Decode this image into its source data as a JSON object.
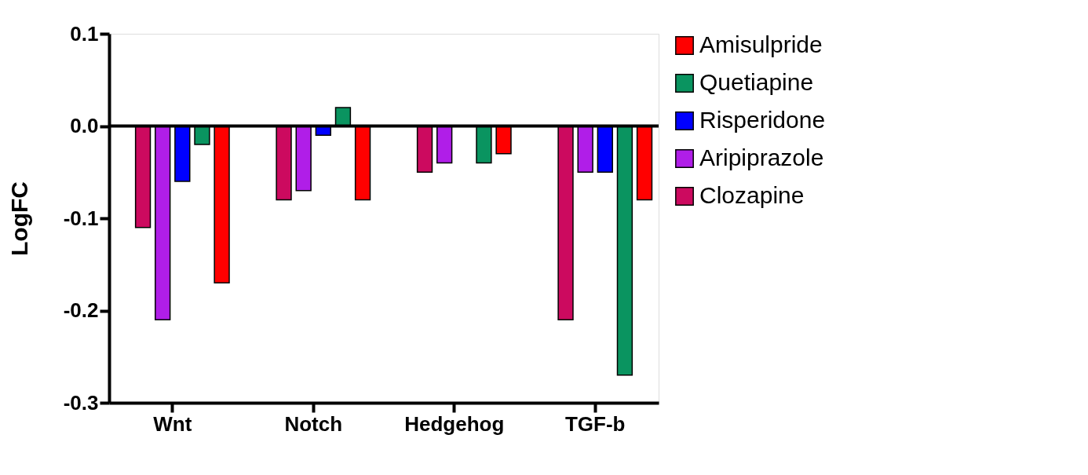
{
  "chart_data": {
    "type": "bar",
    "ylabel": "LogFC",
    "categories": [
      "Wnt",
      "Notch",
      "Hedgehog",
      "TGF-b"
    ],
    "series": [
      {
        "name": "Amisulpride",
        "color": "#ff0000",
        "values": [
          -0.17,
          -0.08,
          -0.03,
          -0.08
        ]
      },
      {
        "name": "Quetiapine",
        "color": "#0a9460",
        "values": [
          -0.02,
          0.02,
          -0.04,
          -0.27
        ]
      },
      {
        "name": "Risperidone",
        "color": "#0000ff",
        "values": [
          -0.06,
          -0.01,
          null,
          -0.05
        ]
      },
      {
        "name": "Aripiprazole",
        "color": "#b01ee8",
        "values": [
          -0.21,
          -0.07,
          -0.04,
          -0.05
        ]
      },
      {
        "name": "Clozapine",
        "color": "#cc0a5f",
        "values": [
          -0.11,
          -0.08,
          -0.05,
          -0.21
        ]
      }
    ],
    "ylim": [
      -0.3,
      0.1
    ],
    "yticks": [
      {
        "value": -0.3,
        "label": "-0.3"
      },
      {
        "value": -0.2,
        "label": "-0.2"
      },
      {
        "value": -0.1,
        "label": "-0.1"
      },
      {
        "value": 0,
        "label": "0.0"
      },
      {
        "value": 0.1,
        "label": "0.1"
      }
    ],
    "ref_lines": [
      {
        "axis": "y",
        "value": 0,
        "label": null
      }
    ],
    "grid": false,
    "legend": "right"
  }
}
